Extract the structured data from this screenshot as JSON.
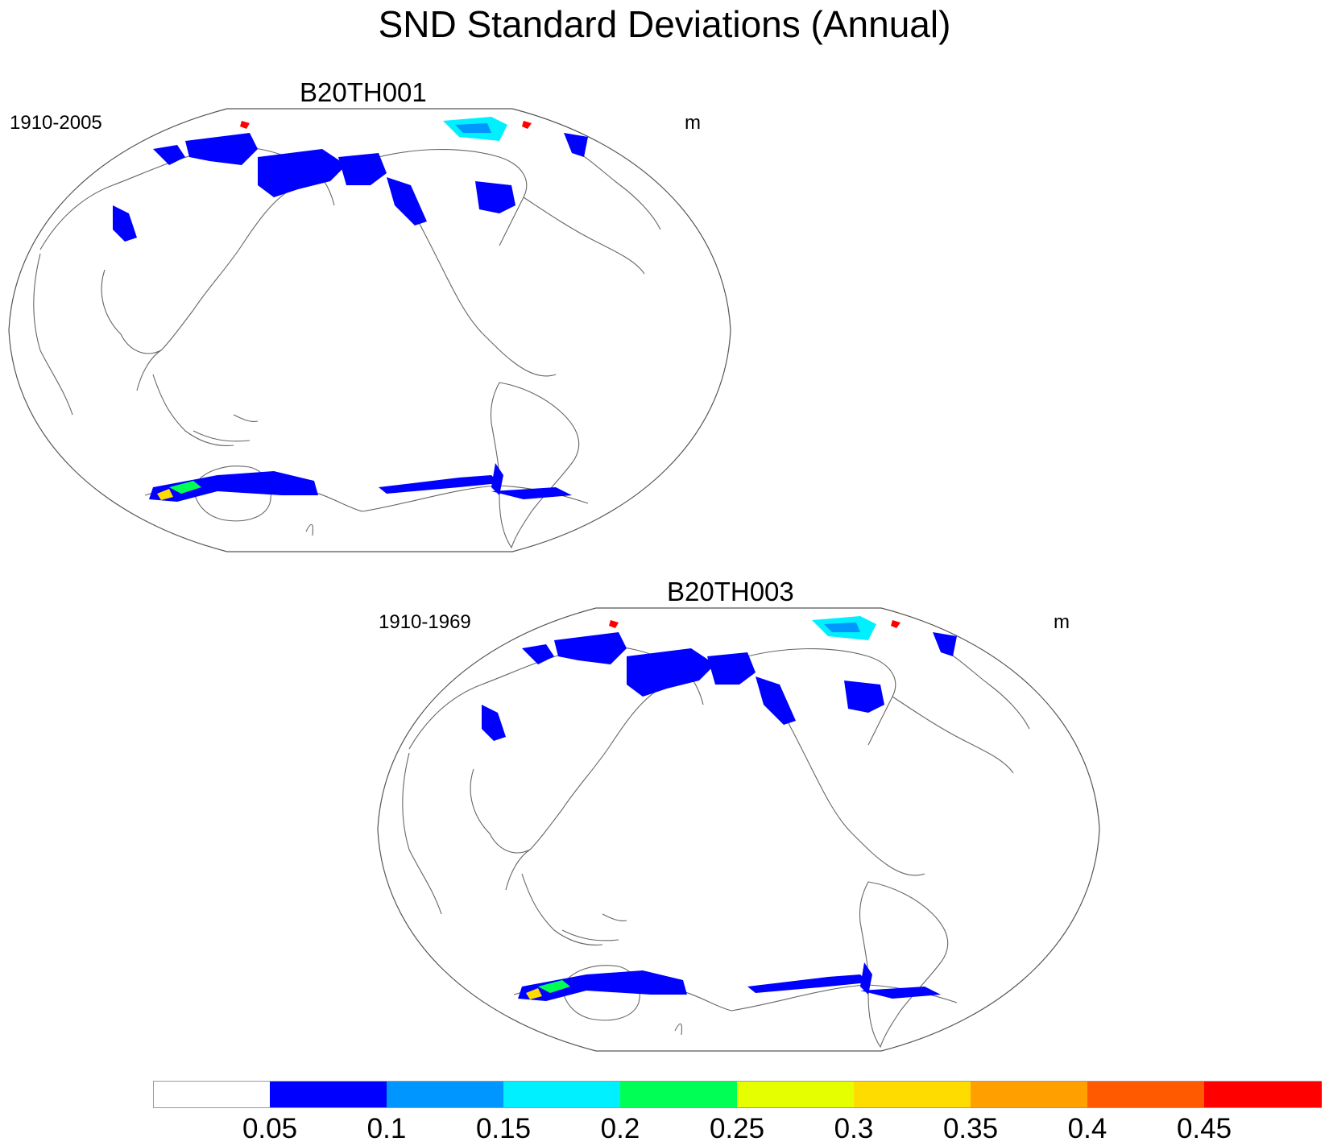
{
  "title": "SND Standard Deviations (Annual)",
  "panels": [
    {
      "title": "B20TH001",
      "left_label": "1910-2005",
      "right_label": "m"
    },
    {
      "title": "B20TH003",
      "left_label": "1910-1969",
      "right_label": "m"
    }
  ],
  "colorbar": {
    "colors": [
      "#ffffff",
      "#0000ff",
      "#0096ff",
      "#00f0ff",
      "#00ff55",
      "#e6ff00",
      "#ffdc00",
      "#ffa000",
      "#ff5a00",
      "#ff0000"
    ],
    "labels": [
      "0.05",
      "0.1",
      "0.15",
      "0.2",
      "0.25",
      "0.3",
      "0.35",
      "0.4",
      "0.45"
    ]
  }
}
